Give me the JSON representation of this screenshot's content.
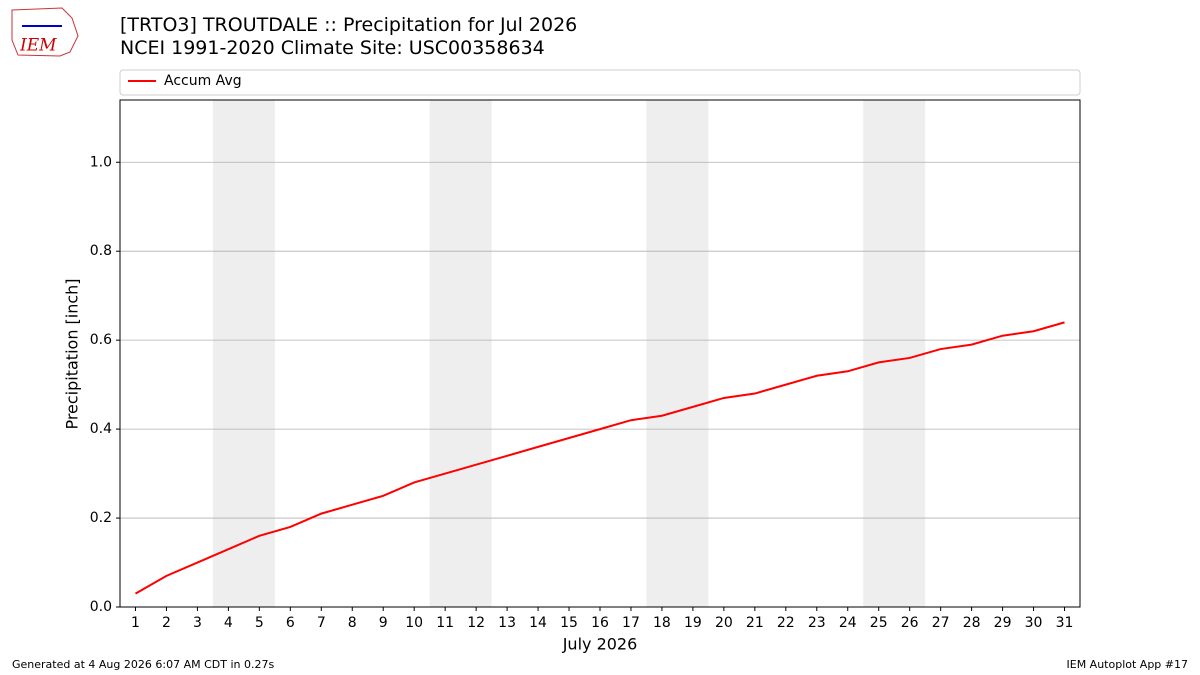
{
  "logo": "IEM",
  "footer_left": "Generated at 4 Aug 2026 6:07 AM CDT in 0.27s",
  "footer_right": "IEM Autoplot App #17",
  "chart_data": {
    "type": "line",
    "title": "[TRTO3] TROUTDALE :: Precipitation for Jul 2026",
    "subtitle": "NCEI 1991-2020 Climate Site: USC00358634",
    "xlabel": "July 2026",
    "ylabel": "Precipitation [inch]",
    "x": [
      1,
      2,
      3,
      4,
      5,
      6,
      7,
      8,
      9,
      10,
      11,
      12,
      13,
      14,
      15,
      16,
      17,
      18,
      19,
      20,
      21,
      22,
      23,
      24,
      25,
      26,
      27,
      28,
      29,
      30,
      31
    ],
    "series": [
      {
        "name": "Accum Avg",
        "color": "#ff0000",
        "values": [
          0.03,
          0.07,
          0.1,
          0.13,
          0.16,
          0.18,
          0.21,
          0.23,
          0.25,
          0.28,
          0.3,
          0.32,
          0.34,
          0.36,
          0.38,
          0.4,
          0.42,
          0.43,
          0.45,
          0.47,
          0.48,
          0.5,
          0.52,
          0.53,
          0.55,
          0.56,
          0.58,
          0.59,
          0.61,
          0.62,
          0.64
        ]
      }
    ],
    "xlim": [
      0.5,
      31.5
    ],
    "xticks": [
      1,
      2,
      3,
      4,
      5,
      6,
      7,
      8,
      9,
      10,
      11,
      12,
      13,
      14,
      15,
      16,
      17,
      18,
      19,
      20,
      21,
      22,
      23,
      24,
      25,
      26,
      27,
      28,
      29,
      30,
      31
    ],
    "ylim": [
      0,
      1.14
    ],
    "yticks": [
      {
        "value": 0,
        "label": "0.0"
      },
      0.2,
      0.4,
      0.6,
      0.8,
      {
        "value": 1,
        "label": "1.0"
      }
    ],
    "shaded_spans": [
      [
        3.5,
        5.5
      ],
      [
        10.5,
        12.5
      ],
      [
        17.5,
        19.5
      ],
      [
        24.5,
        26.5
      ]
    ],
    "shade_color": "#eeeeee",
    "grid": "y",
    "legend": "top"
  }
}
